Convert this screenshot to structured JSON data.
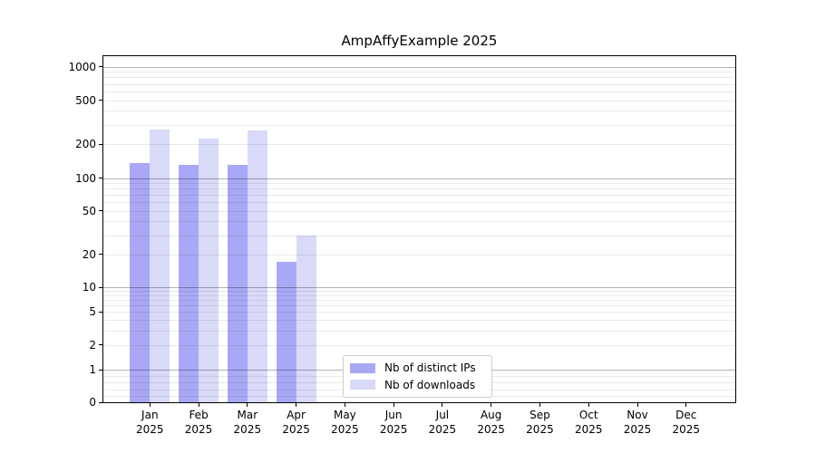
{
  "chart_data": {
    "type": "bar",
    "title": "AmpAffyExample 2025",
    "year_label": "2025",
    "categories": [
      "Jan",
      "Feb",
      "Mar",
      "Apr",
      "May",
      "Jun",
      "Jul",
      "Aug",
      "Sep",
      "Oct",
      "Nov",
      "Dec"
    ],
    "series": [
      {
        "name": "Nb of distinct IPs",
        "color": "#a8a8f6",
        "values": [
          135,
          130,
          130,
          17,
          0,
          0,
          0,
          0,
          0,
          0,
          0,
          0
        ]
      },
      {
        "name": "Nb of downloads",
        "color": "#d9d9f8",
        "values": [
          270,
          225,
          265,
          30,
          0,
          0,
          0,
          0,
          0,
          0,
          0,
          0
        ]
      }
    ],
    "xlabel": "",
    "ylabel": "",
    "y_axis": {
      "scale": "log",
      "ticks": [
        1000,
        500,
        200,
        100,
        50,
        20,
        10,
        5,
        2,
        1,
        0
      ],
      "ylim": [
        0,
        1000
      ]
    },
    "grid": "on",
    "legend_position": "lower center (inside plot)"
  },
  "colors": {
    "distinct_ips_bar": "#a8a8f6",
    "downloads_bar": "#d9d9f8",
    "major_gridline": "#b2b2b2",
    "minor_gridline": "#e9e9e9",
    "frame": "#000000",
    "legend_border": "#cccccc"
  }
}
